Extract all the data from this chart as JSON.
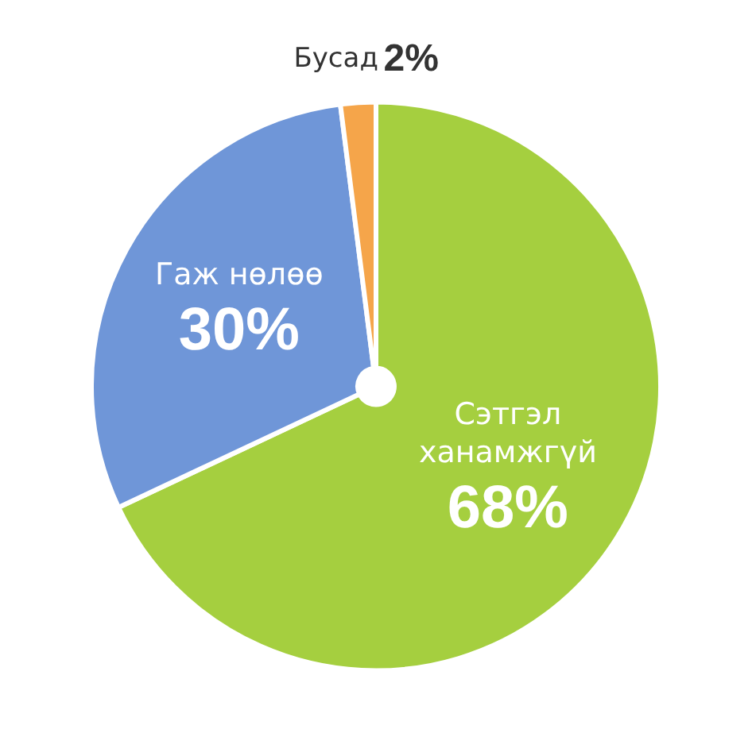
{
  "chart_data": {
    "type": "pie",
    "categories": [
      "Сэтгэл ханамжгүй",
      "Гаж нөлөө",
      "Бусад"
    ],
    "values": [
      68,
      30,
      2
    ],
    "colors": [
      "#a5cf3f",
      "#6f96d8",
      "#f5a54a"
    ],
    "value_labels": [
      "68%",
      "30%",
      "2%"
    ],
    "legend": false
  }
}
